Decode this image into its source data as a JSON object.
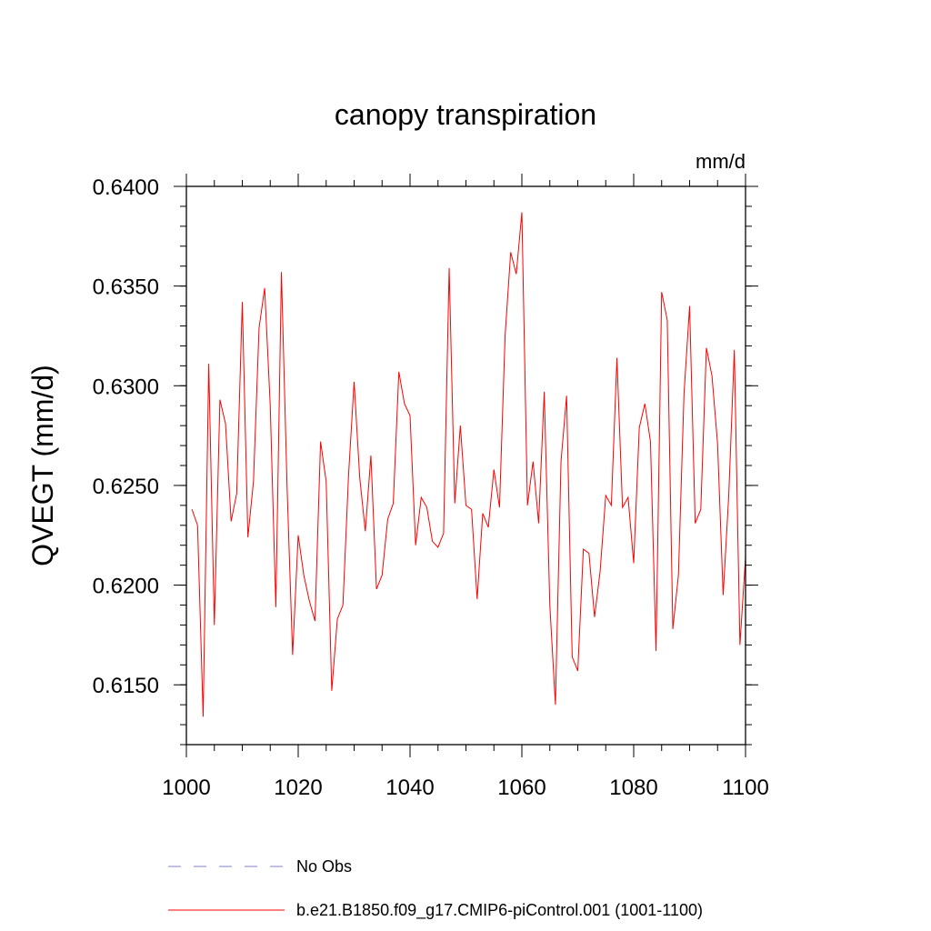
{
  "chart_data": {
    "type": "line",
    "title": "canopy transpiration",
    "units": "mm/d",
    "ylabel": "QVEGT  (mm/d)",
    "xlabel": "",
    "xlim": [
      1000,
      1100
    ],
    "ylim": [
      0.612,
      0.64
    ],
    "x_ticks": [
      1000,
      1020,
      1040,
      1060,
      1080,
      1100
    ],
    "x_tick_labels": [
      "1000",
      "1020",
      "1040",
      "1060",
      "1080",
      "1100"
    ],
    "y_ticks": [
      0.615,
      0.62,
      0.625,
      0.63,
      0.635,
      0.64
    ],
    "y_tick_labels": [
      "0.6150",
      "0.6200",
      "0.6250",
      "0.6300",
      "0.6350",
      "0.6400"
    ],
    "grid": false,
    "legend_position": "bottom",
    "series": [
      {
        "name": "No Obs",
        "color": "#8080c8",
        "dash": "dashed",
        "x": [],
        "y": []
      },
      {
        "name": "b.e21.B1850.f09_g17.CMIP6-piControl.001 (1001-1100)",
        "color": "#ff0000",
        "dash": "solid",
        "x": [
          1001,
          1002,
          1003,
          1004,
          1005,
          1006,
          1007,
          1008,
          1009,
          1010,
          1011,
          1012,
          1013,
          1014,
          1015,
          1016,
          1017,
          1018,
          1019,
          1020,
          1021,
          1022,
          1023,
          1024,
          1025,
          1026,
          1027,
          1028,
          1029,
          1030,
          1031,
          1032,
          1033,
          1034,
          1035,
          1036,
          1037,
          1038,
          1039,
          1040,
          1041,
          1042,
          1043,
          1044,
          1045,
          1046,
          1047,
          1048,
          1049,
          1050,
          1051,
          1052,
          1053,
          1054,
          1055,
          1056,
          1057,
          1058,
          1059,
          1060,
          1061,
          1062,
          1063,
          1064,
          1065,
          1066,
          1067,
          1068,
          1069,
          1070,
          1071,
          1072,
          1073,
          1074,
          1075,
          1076,
          1077,
          1078,
          1079,
          1080,
          1081,
          1082,
          1083,
          1084,
          1085,
          1086,
          1087,
          1088,
          1089,
          1090,
          1091,
          1092,
          1093,
          1094,
          1095,
          1096,
          1097,
          1098,
          1099,
          1100
        ],
        "y": [
          0.6238,
          0.623,
          0.6134,
          0.6311,
          0.618,
          0.6293,
          0.6281,
          0.6232,
          0.6246,
          0.6342,
          0.6224,
          0.6252,
          0.6329,
          0.6349,
          0.629,
          0.6189,
          0.6357,
          0.625,
          0.6165,
          0.6225,
          0.6205,
          0.6192,
          0.6182,
          0.6272,
          0.6252,
          0.6147,
          0.6183,
          0.619,
          0.6255,
          0.6302,
          0.6254,
          0.6227,
          0.6265,
          0.6198,
          0.6205,
          0.6233,
          0.6241,
          0.6307,
          0.6291,
          0.6285,
          0.622,
          0.6244,
          0.6239,
          0.6222,
          0.6219,
          0.6226,
          0.6359,
          0.6241,
          0.628,
          0.624,
          0.6238,
          0.6193,
          0.6236,
          0.6229,
          0.6258,
          0.6239,
          0.6325,
          0.6367,
          0.6356,
          0.6387,
          0.624,
          0.6262,
          0.6231,
          0.6297,
          0.619,
          0.614,
          0.6262,
          0.6295,
          0.6164,
          0.6157,
          0.6218,
          0.6216,
          0.6184,
          0.6207,
          0.6245,
          0.624,
          0.6314,
          0.6239,
          0.6244,
          0.6211,
          0.6279,
          0.6291,
          0.6272,
          0.6167,
          0.6347,
          0.6333,
          0.6178,
          0.6205,
          0.6296,
          0.634,
          0.6231,
          0.6238,
          0.6319,
          0.6305,
          0.6271,
          0.6195,
          0.6245,
          0.6318,
          0.617,
          0.6214
        ]
      }
    ]
  }
}
